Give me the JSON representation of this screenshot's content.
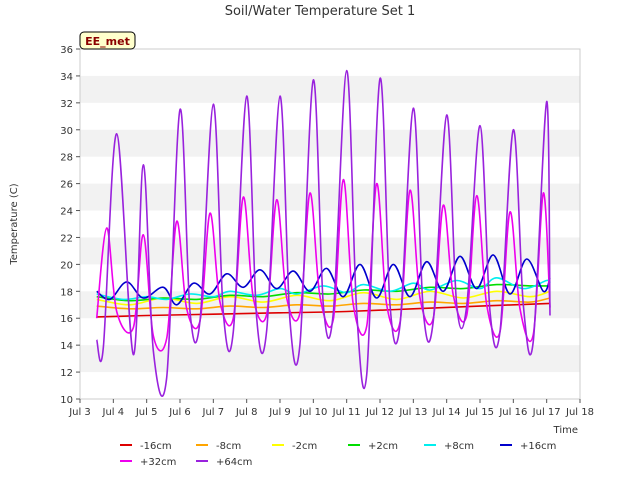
{
  "chart_data": {
    "type": "line",
    "title": "Soil/Water Temperature Set 1",
    "xlabel": "Time",
    "ylabel": "Temperature (C)",
    "station_label": "EE_met",
    "xlim": [
      3,
      18
    ],
    "ylim": [
      10,
      36
    ],
    "x_ticks": [
      3,
      4,
      5,
      6,
      7,
      8,
      9,
      10,
      11,
      12,
      13,
      14,
      15,
      16,
      17,
      18
    ],
    "x_tick_labels": [
      "Jul 3",
      "Jul 4",
      "Jul 5",
      "Jul 6",
      "Jul 7",
      "Jul 8",
      "Jul 9",
      "Jul 10",
      "Jul 11",
      "Jul 12",
      "Jul 13",
      "Jul 14",
      "Jul 15",
      "Jul 16",
      "Jul 17",
      "Jul 18"
    ],
    "y_ticks": [
      10,
      12,
      14,
      16,
      18,
      20,
      22,
      24,
      26,
      28,
      30,
      32,
      34,
      36
    ],
    "grid": "horizontal alternating bands",
    "legend_position": "bottom",
    "series": [
      {
        "name": "-16cm",
        "color": "#dd0000",
        "x": [
          3.5,
          5,
          7,
          9,
          11,
          13,
          15,
          17.1
        ],
        "y": [
          16.1,
          16.2,
          16.3,
          16.4,
          16.5,
          16.7,
          16.9,
          17.1
        ]
      },
      {
        "name": "-8cm",
        "color": "#ffa500",
        "x": [
          3.5,
          4.5,
          5.5,
          6.5,
          7.5,
          8.5,
          9.5,
          10.5,
          11.5,
          12.5,
          13.5,
          14.5,
          15.5,
          16.5,
          17.1
        ],
        "y": [
          16.9,
          16.7,
          16.8,
          16.7,
          16.9,
          16.8,
          17.0,
          16.9,
          17.1,
          17.0,
          17.2,
          17.1,
          17.3,
          17.2,
          17.5
        ]
      },
      {
        "name": "-2cm",
        "color": "#ffff00",
        "x": [
          3.5,
          4.5,
          5.5,
          6.5,
          7.5,
          8.5,
          9.5,
          10.5,
          11.5,
          12.5,
          13.5,
          14.5,
          15.5,
          16.5,
          17.1
        ],
        "y": [
          17.4,
          17.0,
          17.5,
          17.1,
          17.6,
          17.2,
          17.7,
          17.3,
          17.9,
          17.4,
          18.0,
          17.5,
          18.0,
          17.6,
          18.0
        ]
      },
      {
        "name": "+2cm",
        "color": "#00dd00",
        "x": [
          3.5,
          4.5,
          5.5,
          6.5,
          7.5,
          8.5,
          9.5,
          10.5,
          11.5,
          12.5,
          13.5,
          14.5,
          15.5,
          16.5,
          17.1
        ],
        "y": [
          17.6,
          17.3,
          17.5,
          17.4,
          17.7,
          17.6,
          17.9,
          17.8,
          18.1,
          18.0,
          18.3,
          18.2,
          18.5,
          18.4,
          18.4
        ]
      },
      {
        "name": "+8cm",
        "color": "#00eeee",
        "x": [
          3.5,
          4.3,
          5.0,
          5.6,
          6.3,
          7.0,
          7.5,
          8.3,
          9.0,
          9.5,
          10.3,
          11.0,
          11.5,
          12.3,
          13.0,
          13.5,
          14.3,
          15.0,
          15.5,
          16.3,
          17.0,
          17.1
        ],
        "y": [
          17.8,
          17.4,
          17.6,
          17.4,
          17.8,
          17.6,
          18.0,
          17.7,
          18.2,
          17.8,
          18.4,
          17.9,
          18.5,
          18.0,
          18.6,
          18.1,
          18.8,
          18.2,
          19.0,
          18.2,
          18.8,
          18.6
        ]
      },
      {
        "name": "+16cm",
        "color": "#0000cc",
        "x": [
          3.5,
          3.9,
          4.4,
          4.9,
          5.5,
          5.9,
          6.4,
          6.9,
          7.4,
          7.9,
          8.4,
          8.9,
          9.4,
          9.9,
          10.4,
          10.9,
          11.4,
          11.9,
          12.4,
          12.9,
          13.4,
          13.9,
          14.4,
          14.9,
          15.4,
          15.9,
          16.4,
          16.9,
          17.1
        ],
        "y": [
          18.0,
          17.4,
          18.7,
          17.5,
          18.3,
          17.0,
          18.6,
          17.8,
          19.3,
          18.3,
          19.6,
          18.2,
          19.5,
          18.0,
          19.7,
          17.6,
          20.0,
          17.5,
          20.0,
          17.6,
          20.2,
          18.0,
          20.6,
          18.2,
          20.7,
          17.8,
          20.4,
          18.0,
          19.0
        ]
      },
      {
        "name": "+32cm",
        "color": "#ee00ee",
        "x": [
          3.5,
          3.8,
          4.1,
          4.6,
          4.9,
          5.2,
          5.6,
          5.9,
          6.2,
          6.6,
          6.9,
          7.2,
          7.6,
          7.9,
          8.2,
          8.6,
          8.9,
          9.2,
          9.6,
          9.9,
          10.2,
          10.6,
          10.9,
          11.2,
          11.6,
          11.9,
          12.2,
          12.6,
          12.9,
          13.2,
          13.6,
          13.9,
          14.2,
          14.6,
          14.9,
          15.2,
          15.6,
          15.9,
          16.2,
          16.6,
          16.9,
          17.1
        ],
        "y": [
          16.0,
          22.7,
          16.5,
          15.3,
          22.2,
          14.7,
          14.5,
          23.2,
          16.7,
          15.8,
          23.8,
          17.2,
          16.0,
          25.0,
          17.5,
          16.3,
          24.8,
          17.5,
          16.4,
          25.3,
          17.6,
          15.9,
          26.3,
          17.0,
          15.4,
          26.0,
          17.0,
          15.7,
          25.5,
          17.5,
          16.0,
          24.4,
          17.7,
          16.2,
          25.1,
          17.0,
          15.0,
          23.9,
          16.7,
          14.8,
          25.3,
          16.8
        ]
      },
      {
        "name": "+64cm",
        "color": "#9922dd",
        "x": [
          3.5,
          3.7,
          4.1,
          4.6,
          4.9,
          5.2,
          5.6,
          6.0,
          6.3,
          6.6,
          7.0,
          7.3,
          7.6,
          8.0,
          8.3,
          8.6,
          9.0,
          9.3,
          9.6,
          10.0,
          10.3,
          10.6,
          11.0,
          11.3,
          11.6,
          12.0,
          12.3,
          12.6,
          13.0,
          13.3,
          13.6,
          14.0,
          14.3,
          14.6,
          15.0,
          15.3,
          15.6,
          16.0,
          16.3,
          16.6,
          17.0,
          17.1
        ],
        "y": [
          14.4,
          13.8,
          29.7,
          13.3,
          27.4,
          13.6,
          11.6,
          31.5,
          16.5,
          15.8,
          31.9,
          16.4,
          15.0,
          32.5,
          16.0,
          15.1,
          32.5,
          15.8,
          14.1,
          33.7,
          17.0,
          16.4,
          34.4,
          16.5,
          11.8,
          33.8,
          17.0,
          15.5,
          31.6,
          16.5,
          15.8,
          31.1,
          17.0,
          16.9,
          30.3,
          16.5,
          15.0,
          30.0,
          17.0,
          14.3,
          32.1,
          16.2
        ]
      }
    ]
  }
}
